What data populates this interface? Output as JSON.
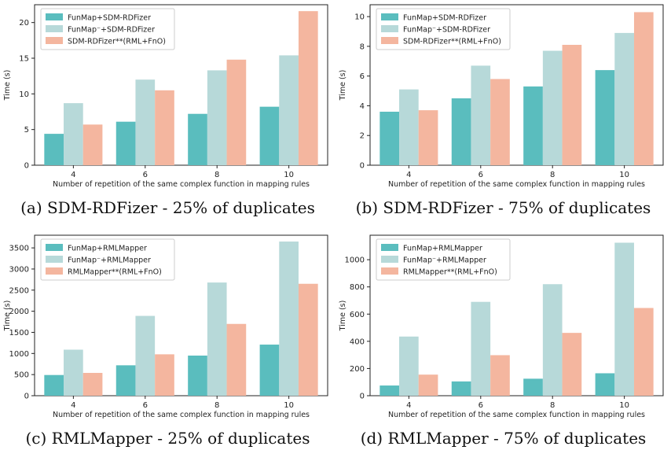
{
  "legend_colors": [
    "#5ABDBE",
    "#B7D9D9",
    "#F4B69F"
  ],
  "chart_data": [
    {
      "type": "bar",
      "caption": "(a) SDM-RDFizer - 25% of duplicates",
      "categories": [
        "4",
        "6",
        "8",
        "10"
      ],
      "xlabel": "Number of repetition of the same complex function in mapping rules",
      "ylabel": "Time (s)",
      "ylim": [
        0,
        22.5
      ],
      "yticks": [
        0,
        5,
        10,
        15,
        20
      ],
      "legend": "top-left",
      "series": [
        {
          "name": "FunMap+SDM-RDFizer",
          "values": [
            4.4,
            6.1,
            7.2,
            8.2
          ]
        },
        {
          "name": "FunMap⁻+SDM-RDFizer",
          "values": [
            8.7,
            12.0,
            13.3,
            15.4
          ]
        },
        {
          "name": "SDM-RDFizer**(RML+FnO)",
          "values": [
            5.7,
            10.5,
            14.8,
            21.6
          ]
        }
      ]
    },
    {
      "type": "bar",
      "caption": "(b) SDM-RDFizer - 75% of duplicates",
      "categories": [
        "4",
        "6",
        "8",
        "10"
      ],
      "xlabel": "Number of repetition of the same complex function in mapping rules",
      "ylabel": "Time (s)",
      "ylim": [
        0,
        10.8
      ],
      "yticks": [
        0,
        2,
        4,
        6,
        8,
        10
      ],
      "legend": "top-left",
      "series": [
        {
          "name": "FunMap+SDM-RDFizer",
          "values": [
            3.6,
            4.5,
            5.3,
            6.4
          ]
        },
        {
          "name": "FunMap⁻+SDM-RDFizer",
          "values": [
            5.1,
            6.7,
            7.7,
            8.9
          ]
        },
        {
          "name": "SDM-RDFizer**(RML+FnO)",
          "values": [
            3.7,
            5.8,
            8.1,
            10.3
          ]
        }
      ]
    },
    {
      "type": "bar",
      "caption": "(c) RMLMapper - 25% of duplicates",
      "categories": [
        "4",
        "6",
        "8",
        "10"
      ],
      "xlabel": "Number of repetition of the same complex function in mapping rules",
      "ylabel": "Time (s)",
      "ylim": [
        0,
        3800
      ],
      "yticks": [
        0,
        500,
        1000,
        1500,
        2000,
        2500,
        3000,
        3500
      ],
      "legend": "top-left",
      "series": [
        {
          "name": "FunMap+RMLMapper",
          "values": [
            490,
            720,
            950,
            1210
          ]
        },
        {
          "name": "FunMap⁻+RMLMapper",
          "values": [
            1090,
            1890,
            2680,
            3650
          ]
        },
        {
          "name": "RMLMapper**(RML+FnO)",
          "values": [
            540,
            980,
            1700,
            2650
          ]
        }
      ]
    },
    {
      "type": "bar",
      "caption": "(d) RMLMapper - 75% of duplicates",
      "categories": [
        "4",
        "6",
        "8",
        "10"
      ],
      "xlabel": "Number of repetition of the same complex function in mapping rules",
      "ylabel": "Time (s)",
      "ylim": [
        0,
        1180
      ],
      "yticks": [
        0,
        200,
        400,
        600,
        800,
        1000
      ],
      "legend": "top-left",
      "series": [
        {
          "name": "FunMap+RMLMapper",
          "values": [
            75,
            105,
            125,
            165
          ]
        },
        {
          "name": "FunMap⁻+RMLMapper",
          "values": [
            435,
            690,
            820,
            1125
          ]
        },
        {
          "name": "RMLMapper**(RML+FnO)",
          "values": [
            155,
            298,
            462,
            645
          ]
        }
      ]
    }
  ]
}
